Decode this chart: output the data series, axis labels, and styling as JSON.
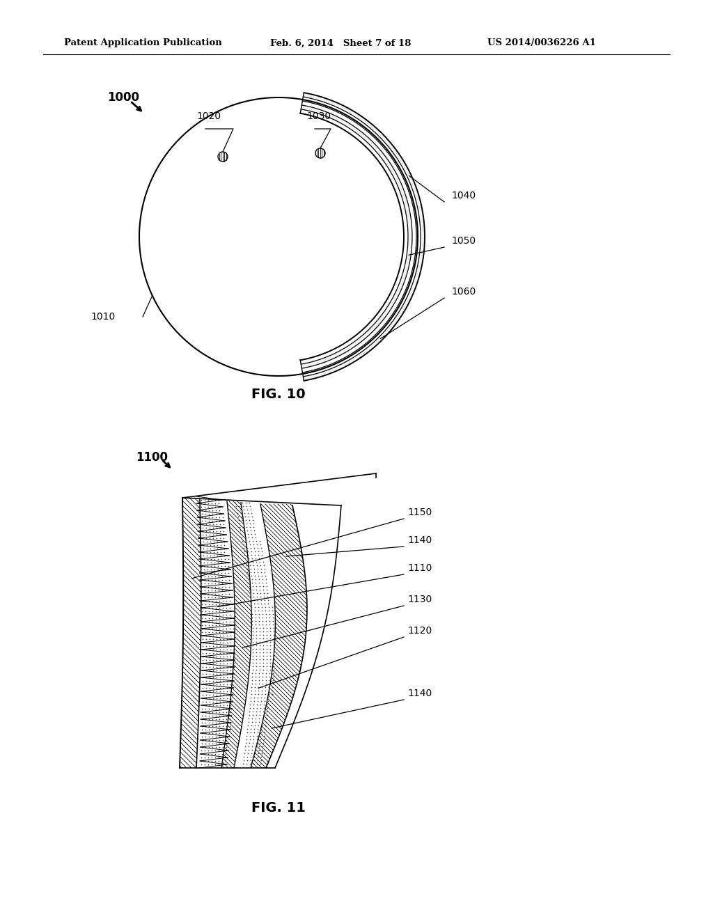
{
  "header_left": "Patent Application Publication",
  "header_mid": "Feb. 6, 2014   Sheet 7 of 18",
  "header_right": "US 2014/0036226 A1",
  "fig10_label": "FIG. 10",
  "fig11_label": "FIG. 11",
  "bg_color": "#ffffff",
  "line_color": "#000000"
}
